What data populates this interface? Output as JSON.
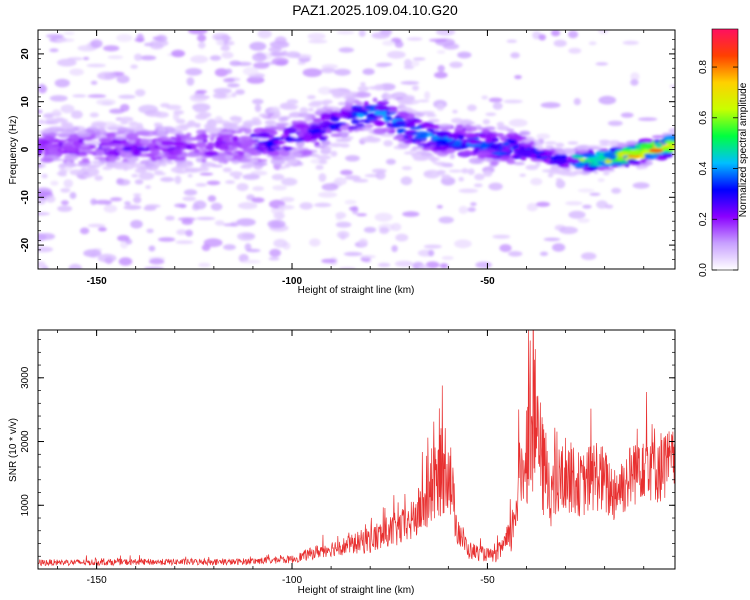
{
  "title": "PAZ1.2025.109.04.10.G20",
  "chart_data": [
    {
      "type": "heatmap",
      "xlabel": "Height of straight line (km)",
      "ylabel": "Frequency (Hz)",
      "xlim": [
        -165,
        -2
      ],
      "ylim": [
        -25,
        25
      ],
      "xticks": [
        -150,
        -100,
        -50
      ],
      "yticks": [
        -20,
        -10,
        0,
        10,
        20
      ],
      "colorbar": {
        "label": "Normalized spectral amplitude",
        "range": [
          0,
          0.95
        ],
        "ticks": [
          0.0,
          0.2,
          0.4,
          0.6,
          0.8
        ],
        "colors": [
          "#ffffff",
          "#c8a0ff",
          "#8a00ff",
          "#0000ff",
          "#00bfff",
          "#00ff40",
          "#c8ff00",
          "#ffd000",
          "#ff4000",
          "#ff1060"
        ]
      },
      "ridge": {
        "x": [
          -165,
          -150,
          -135,
          -120,
          -105,
          -95,
          -85,
          -78,
          -70,
          -62,
          -55,
          -48,
          -40,
          -33,
          -25,
          -15,
          -8,
          -2
        ],
        "y": [
          0.5,
          0.5,
          0.5,
          0.5,
          1.5,
          3,
          7,
          7.5,
          4,
          2,
          1.5,
          0.5,
          0,
          -2,
          -2.5,
          -1.5,
          0,
          1
        ]
      }
    },
    {
      "type": "line",
      "xlabel": "Height of straight line (km)",
      "ylabel": "SNR (10 * v/v)",
      "xlim": [
        -165,
        -2
      ],
      "ylim": [
        0,
        3750
      ],
      "xticks": [
        -150,
        -100,
        -50
      ],
      "yticks": [
        1000,
        2000,
        3000
      ],
      "color": "#e83030",
      "envelope": {
        "x": [
          -165,
          -140,
          -115,
          -100,
          -92,
          -85,
          -78,
          -70,
          -65,
          -62,
          -60,
          -58,
          -55,
          -52,
          -48,
          -44,
          -42,
          -40,
          -38,
          -36,
          -33,
          -30,
          -26,
          -22,
          -18,
          -14,
          -10,
          -6,
          -2
        ],
        "mean": [
          100,
          110,
          110,
          150,
          300,
          380,
          500,
          700,
          1100,
          1500,
          1700,
          700,
          300,
          250,
          200,
          500,
          1300,
          1900,
          2400,
          1600,
          1200,
          1500,
          1300,
          1500,
          1200,
          1400,
          1800,
          1600,
          1700
        ],
        "amp": [
          50,
          50,
          50,
          60,
          120,
          150,
          250,
          300,
          500,
          700,
          800,
          300,
          150,
          120,
          100,
          300,
          600,
          900,
          1200,
          800,
          600,
          600,
          500,
          600,
          500,
          500,
          700,
          600,
          500
        ]
      }
    }
  ]
}
